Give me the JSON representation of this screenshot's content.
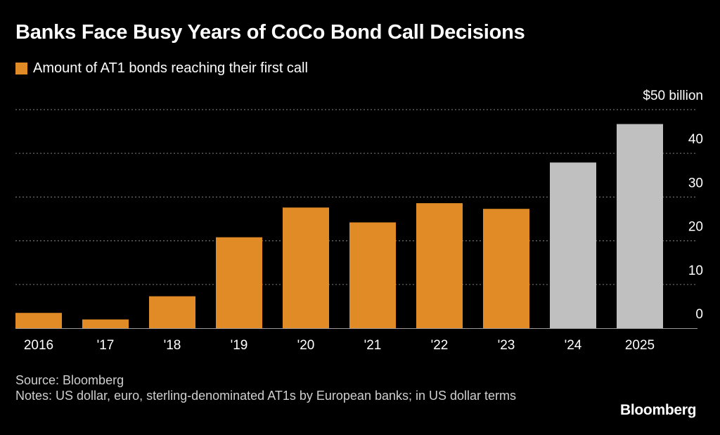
{
  "title": "Banks Face Busy Years of CoCo Bond Call Decisions",
  "legend": {
    "label": "Amount of AT1 bonds reaching their first call",
    "color": "#e08b26"
  },
  "footer": {
    "source": "Source: Bloomberg",
    "notes": "Notes: US dollar, euro, sterling-denominated AT1s by European banks; in US dollar terms"
  },
  "brand": "Bloomberg",
  "colors": {
    "actual": "#e08b26",
    "future": "#c0c0c0",
    "grid": "#6e6e6e",
    "background": "#000000"
  },
  "chart_data": {
    "type": "bar",
    "categories": [
      "2016",
      "'17",
      "'18",
      "'19",
      "'20",
      "'21",
      "'22",
      "'23",
      "'24",
      "2025"
    ],
    "values": [
      3.5,
      2,
      7.3,
      20.8,
      27.6,
      24.2,
      28.6,
      27.3,
      37.9,
      46.7
    ],
    "bar_colors": [
      "#e08b26",
      "#e08b26",
      "#e08b26",
      "#e08b26",
      "#e08b26",
      "#e08b26",
      "#e08b26",
      "#e08b26",
      "#c0c0c0",
      "#c0c0c0"
    ],
    "y_ticks": [
      0,
      10,
      20,
      30,
      40,
      50
    ],
    "y_tick_labels": [
      "0",
      "10",
      "20",
      "30",
      "40",
      "$50 billion"
    ],
    "ylim": [
      0,
      50
    ],
    "grid": true,
    "y_axis_position": "right"
  }
}
